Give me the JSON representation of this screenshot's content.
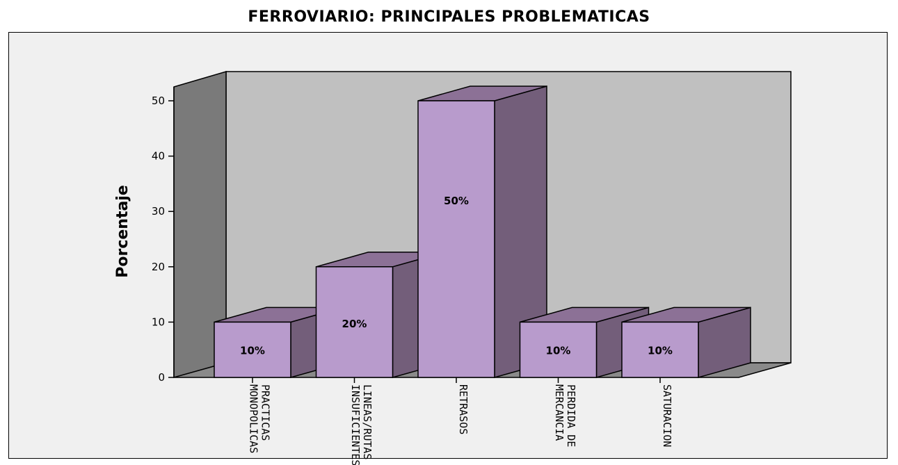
{
  "chart_data": {
    "type": "bar",
    "title": "FERROVIARIO: PRINCIPALES PROBLEMATICAS",
    "ylabel": "Porcentaje",
    "xlabel": "",
    "categories": [
      [
        "PRACTICAS",
        "MONOPOLICAS"
      ],
      [
        "LINEAS/RUTAS",
        "INSUFICIENTES"
      ],
      [
        "RETRASOS"
      ],
      [
        "PERDIDA DE",
        "MERCANCIA"
      ],
      [
        "SATURACION"
      ]
    ],
    "values": [
      10,
      20,
      50,
      10,
      10
    ],
    "data_labels": [
      "10%",
      "20%",
      "50%",
      "10%",
      "10%"
    ],
    "ylim": [
      0,
      50
    ],
    "yticks": [
      0,
      10,
      20,
      30,
      40,
      50
    ],
    "grid": false,
    "style": "3d",
    "colors": {
      "bar_front": "#b89bcc",
      "bar_side": "#735e7a",
      "bar_top": "#8c7196",
      "back_wall": "#c0c0c0",
      "left_wall": "#7a7a7a",
      "floor": "#8a8a8a",
      "panel": "#f0f0f0"
    }
  }
}
